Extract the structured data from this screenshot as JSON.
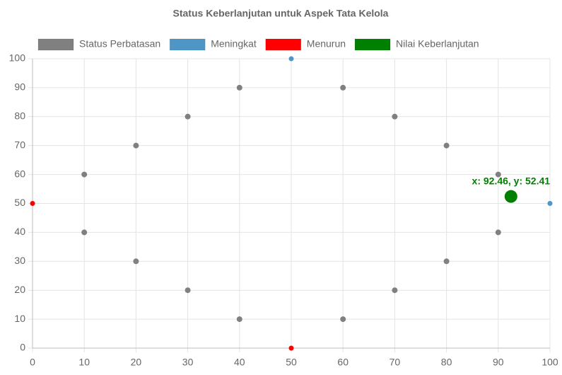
{
  "chart_data": {
    "type": "scatter",
    "title": "Status Keberlanjutan untuk Aspek Tata Kelola",
    "series": [
      {
        "name": "Status Perbatasan",
        "color": "#808080",
        "x": [
          10,
          20,
          30,
          40,
          60,
          70,
          80,
          90,
          10,
          20,
          30,
          40,
          60,
          70,
          80,
          90
        ],
        "values": [
          60,
          70,
          80,
          90,
          90,
          80,
          70,
          60,
          40,
          30,
          20,
          10,
          10,
          20,
          30,
          40
        ]
      },
      {
        "name": "Meningkat",
        "color": "#4e96c5",
        "x": [
          50,
          100
        ],
        "values": [
          100,
          50
        ]
      },
      {
        "name": "Menurun",
        "color": "#ff0000",
        "x": [
          0,
          50
        ],
        "values": [
          50,
          0
        ]
      },
      {
        "name": "Nilai Keberlanjutan",
        "color": "#008000",
        "x": [
          92.46
        ],
        "values": [
          52.41
        ],
        "value_labels": [
          "x: 92.46, y: 52.41"
        ]
      }
    ],
    "xlim": [
      0,
      100
    ],
    "xticks": [
      0,
      10,
      20,
      30,
      40,
      50,
      60,
      70,
      80,
      90,
      100
    ],
    "ylim": [
      0,
      100
    ],
    "yticks": [
      0,
      10,
      20,
      30,
      40,
      50,
      60,
      70,
      80,
      90,
      100
    ],
    "grid": true,
    "legend": "top"
  }
}
